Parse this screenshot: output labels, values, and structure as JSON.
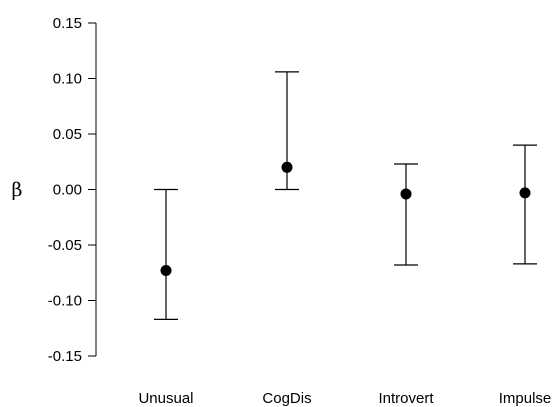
{
  "chart_data": {
    "type": "scatter",
    "ylabel": "β",
    "ylim": [
      -0.15,
      0.15
    ],
    "yticks": [
      -0.15,
      -0.1,
      -0.05,
      0.0,
      0.05,
      0.1,
      0.15
    ],
    "ytick_labels": [
      "-0.15",
      "-0.10",
      "-0.05",
      "0.00",
      "0.05",
      "0.10",
      "0.15"
    ],
    "categories": [
      "Unusual",
      "CogDis",
      "Introvert",
      "Impulse"
    ],
    "values": [
      -0.073,
      0.02,
      -0.004,
      -0.003
    ],
    "lower": [
      -0.117,
      0.0,
      -0.068,
      -0.067
    ],
    "upper": [
      0.0,
      0.106,
      0.023,
      0.04
    ],
    "grid": false,
    "marker_color": "#000000"
  }
}
